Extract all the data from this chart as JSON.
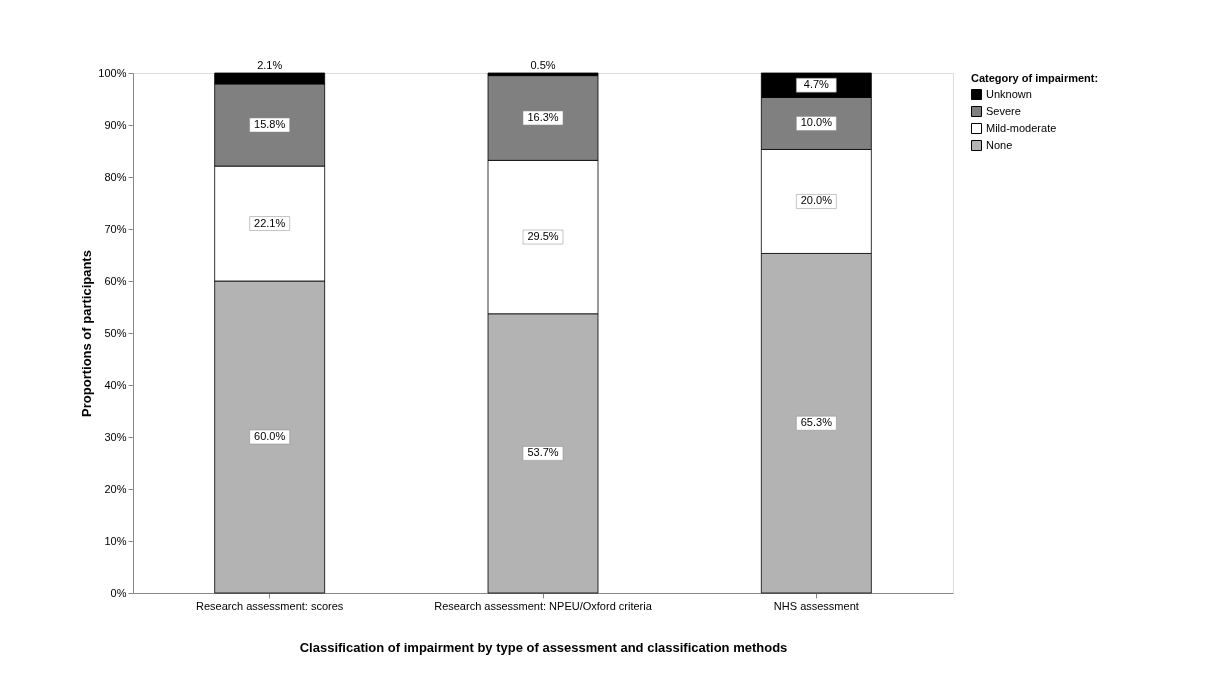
{
  "chart_data": {
    "type": "bar",
    "stacked": true,
    "xlabel": "Classification of impairment by type of assessment and classification methods",
    "ylabel": "Proportions of participants",
    "legend_title": "Category of impairment:",
    "categories": [
      "Research assessment: scores",
      "Research assessment: NPEU/Oxford criteria",
      "NHS assessment"
    ],
    "series": [
      {
        "name": "None",
        "color": "#b3b3b3",
        "values": [
          60.0,
          53.7,
          65.3
        ],
        "value_labels": [
          "60.0%",
          "53.7%",
          "65.3%"
        ]
      },
      {
        "name": "Mild-moderate",
        "color": "#ffffff",
        "values": [
          22.1,
          29.5,
          20.0
        ],
        "value_labels": [
          "22.1%",
          "29.5%",
          "20.0%"
        ]
      },
      {
        "name": "Severe",
        "color": "#808080",
        "values": [
          15.8,
          16.3,
          10.0
        ],
        "value_labels": [
          "15.8%",
          "16.3%",
          "10.0%"
        ]
      },
      {
        "name": "Unknown",
        "color": "#000000",
        "values": [
          2.1,
          0.5,
          4.7
        ],
        "value_labels": [
          "2.1%",
          "0.5%",
          "4.7%"
        ]
      }
    ],
    "ylim": [
      0,
      100
    ],
    "yticks": [
      {
        "value": 0,
        "label": "0%"
      },
      {
        "value": 10,
        "label": "10%"
      },
      {
        "value": 20,
        "label": "20%"
      },
      {
        "value": 30,
        "label": "30%"
      },
      {
        "value": 40,
        "label": "40%"
      },
      {
        "value": 50,
        "label": "50%"
      },
      {
        "value": 60,
        "label": "60%"
      },
      {
        "value": 70,
        "label": "70%"
      },
      {
        "value": 80,
        "label": "80%"
      },
      {
        "value": 90,
        "label": "90%"
      },
      {
        "value": 100,
        "label": "100%"
      }
    ],
    "grid": false,
    "legend": "right"
  }
}
